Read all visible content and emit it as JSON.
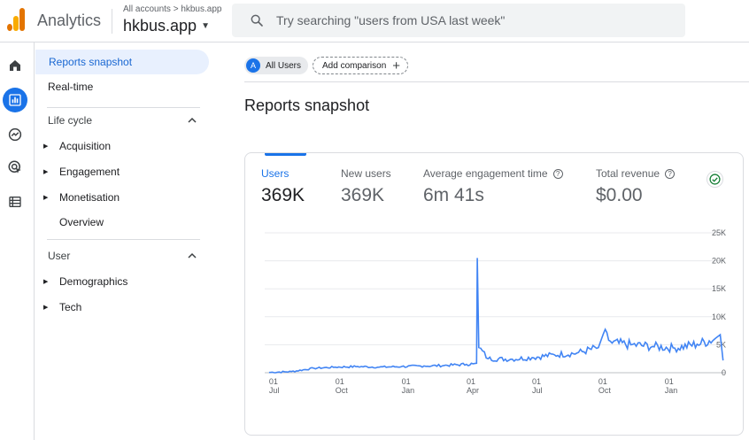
{
  "header": {
    "app_name": "Analytics",
    "breadcrumb": "All accounts > hkbus.app",
    "property": "hkbus.app",
    "search_placeholder": "Try searching \"users from USA last week\""
  },
  "rail": {
    "icons": [
      "home-icon",
      "reports-icon",
      "explore-icon",
      "advertising-icon",
      "configure-icon"
    ],
    "active": "reports-icon"
  },
  "nav": {
    "reports_snapshot": "Reports snapshot",
    "realtime": "Real-time",
    "lifecycle": {
      "label": "Life cycle",
      "items": [
        "Acquisition",
        "Engagement",
        "Monetisation",
        "Overview"
      ]
    },
    "user": {
      "label": "User",
      "items": [
        "Demographics",
        "Tech"
      ]
    }
  },
  "main": {
    "segment_chip": {
      "avatar": "A",
      "label": "All Users"
    },
    "add_comparison": "Add comparison",
    "title": "Reports snapshot",
    "metrics": [
      {
        "label": "Users",
        "value": "369K"
      },
      {
        "label": "New users",
        "value": "369K"
      },
      {
        "label": "Average engagement time",
        "value": "6m 41s"
      },
      {
        "label": "Total revenue",
        "value": "$0.00"
      }
    ]
  },
  "colors": {
    "accent": "#1a73e8",
    "line": "#4285f4",
    "status_ok": "#188038"
  },
  "chart_data": {
    "type": "line",
    "title": "",
    "xlabel": "",
    "ylabel": "",
    "ylim": [
      0,
      25000
    ],
    "y_ticks": [
      "25K",
      "20K",
      "15K",
      "10K",
      "5K",
      "0"
    ],
    "y_tick_values": [
      25000,
      20000,
      15000,
      10000,
      5000,
      0
    ],
    "x_ticks": [
      {
        "day": "01",
        "month": "Jul",
        "date": "2022-07-01"
      },
      {
        "day": "01",
        "month": "Oct",
        "date": "2022-10-01"
      },
      {
        "day": "01",
        "month": "Jan",
        "date": "2023-01-01"
      },
      {
        "day": "01",
        "month": "Apr",
        "date": "2023-04-01"
      },
      {
        "day": "01",
        "month": "Jul",
        "date": "2023-07-01"
      },
      {
        "day": "01",
        "month": "Oct",
        "date": "2023-10-01"
      },
      {
        "day": "01",
        "month": "Jan",
        "date": "2024-01-01"
      }
    ],
    "grid": true,
    "series": [
      {
        "name": "Users",
        "points": [
          [
            "2022-07-01",
            50
          ],
          [
            "2022-08-01",
            200
          ],
          [
            "2022-09-01",
            800
          ],
          [
            "2022-10-01",
            1000
          ],
          [
            "2022-11-01",
            1100
          ],
          [
            "2022-12-01",
            1000
          ],
          [
            "2023-01-01",
            1100
          ],
          [
            "2023-02-01",
            1200
          ],
          [
            "2023-03-01",
            1300
          ],
          [
            "2023-04-01",
            1500
          ],
          [
            "2023-04-10",
            1600
          ],
          [
            "2023-04-15",
            1700
          ],
          [
            "2023-04-16",
            20500
          ],
          [
            "2023-04-18",
            4500
          ],
          [
            "2023-05-01",
            2500
          ],
          [
            "2023-06-01",
            2400
          ],
          [
            "2023-07-01",
            2700
          ],
          [
            "2023-08-01",
            3200
          ],
          [
            "2023-09-01",
            3500
          ],
          [
            "2023-10-01",
            4500
          ],
          [
            "2023-10-08",
            7000
          ],
          [
            "2023-10-20",
            5300
          ],
          [
            "2023-11-15",
            5000
          ],
          [
            "2023-12-15",
            4700
          ],
          [
            "2024-01-15",
            4400
          ],
          [
            "2024-02-15",
            5100
          ],
          [
            "2024-03-10",
            6000
          ],
          [
            "2024-03-18",
            6800
          ],
          [
            "2024-03-22",
            2200
          ]
        ]
      }
    ]
  }
}
